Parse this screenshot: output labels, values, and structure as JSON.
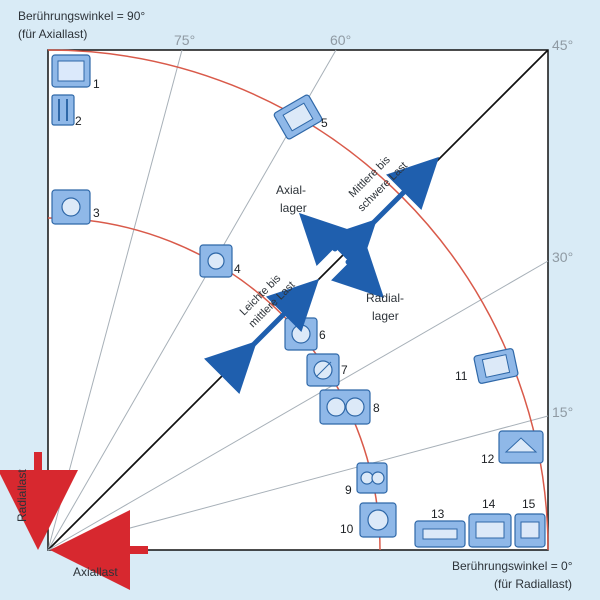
{
  "title_axial": {
    "line1": "Berührungswinkel = 90°",
    "line2": "(für Axiallast)"
  },
  "title_radial": {
    "line1": "Berührungswinkel = 0°",
    "line2": "(für Radiallast)"
  },
  "angles": {
    "a75": "75°",
    "a60": "60°",
    "a45": "45°",
    "a30": "30°",
    "a15": "15°"
  },
  "forces": {
    "radial": "Radiallast",
    "axial": "Axiallast"
  },
  "regions": {
    "axial_line1": "Axial-",
    "axial_line2": "lager",
    "radial_line1": "Radial-",
    "radial_line2": "lager",
    "light_line1": "Leichte bis",
    "light_line2": "mittlere Last",
    "heavy_line1": "Mittlere bis",
    "heavy_line2": "schwere Last"
  },
  "bearing_numbers": [
    "1",
    "2",
    "3",
    "4",
    "5",
    "6",
    "7",
    "8",
    "9",
    "10",
    "11",
    "12",
    "13",
    "14",
    "15"
  ],
  "colors": {
    "background": "#d9ebf6",
    "plot_fill": "#ffffff",
    "border": "#111111",
    "arc": "#d95a4a",
    "ray": "#a7b0b8",
    "accent_blue": "#1f5fae",
    "accent_red": "#d7282f"
  }
}
